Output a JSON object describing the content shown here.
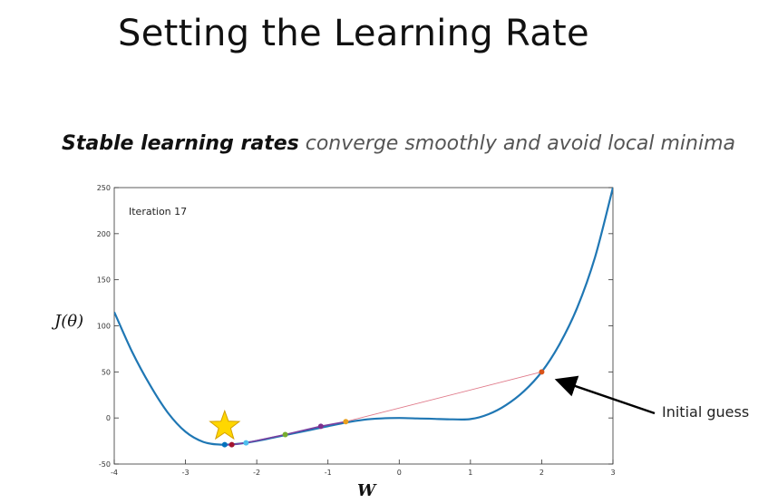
{
  "slide": {
    "title": "Setting the Learning Rate",
    "subtitle_bold": "Stable learning rates",
    "subtitle_rest": " converge smoothly and avoid local minima"
  },
  "chart_data": {
    "type": "line",
    "annotation": "Iteration 17",
    "xlabel": "W",
    "ylabel": "J(θ)",
    "xlim": [
      -4,
      3
    ],
    "ylim": [
      -50,
      250
    ],
    "xticks": [
      -4,
      -3,
      -2,
      -1,
      0,
      1,
      2,
      3
    ],
    "yticks": [
      -50,
      0,
      50,
      100,
      150,
      200,
      250
    ],
    "curve_color": "#1f77b4",
    "curve": {
      "x": [
        -4,
        -3.75,
        -3.5,
        -3.25,
        -3.0,
        -2.75,
        -2.5,
        -2.25,
        -2.0,
        -1.75,
        -1.5,
        -1.25,
        -1.0,
        -0.75,
        -0.5,
        -0.25,
        0,
        0.25,
        0.5,
        0.75,
        1.0,
        1.25,
        1.5,
        1.75,
        2.0,
        2.25,
        2.5,
        2.75,
        3.0
      ],
      "y": [
        115,
        72,
        36,
        6,
        -15,
        -26,
        -29,
        -28,
        -25,
        -21,
        -17,
        -13,
        -9,
        -5,
        -2,
        -0.5,
        0,
        -0.5,
        -1,
        -1.5,
        -1.2,
        4,
        14,
        29,
        50,
        80,
        120,
        175,
        250
      ]
    },
    "path_color": "#7b3fa0",
    "guess_line_color": "#e07a8a",
    "iterates": [
      {
        "x": 2.0,
        "y": 50,
        "color": "#d9541a"
      },
      {
        "x": -0.75,
        "y": -4,
        "color": "#e8a01e"
      },
      {
        "x": -1.1,
        "y": -9,
        "color": "#7e2f8e"
      },
      {
        "x": -1.6,
        "y": -18,
        "color": "#77ac30"
      },
      {
        "x": -2.15,
        "y": -27,
        "color": "#4dbeee"
      },
      {
        "x": -2.35,
        "y": -29,
        "color": "#a2142f"
      },
      {
        "x": -2.45,
        "y": -29,
        "color": "#0072bd"
      }
    ],
    "star": {
      "x": -2.45,
      "y": -9,
      "color": "#ffd700"
    },
    "callout": "Initial guess"
  }
}
